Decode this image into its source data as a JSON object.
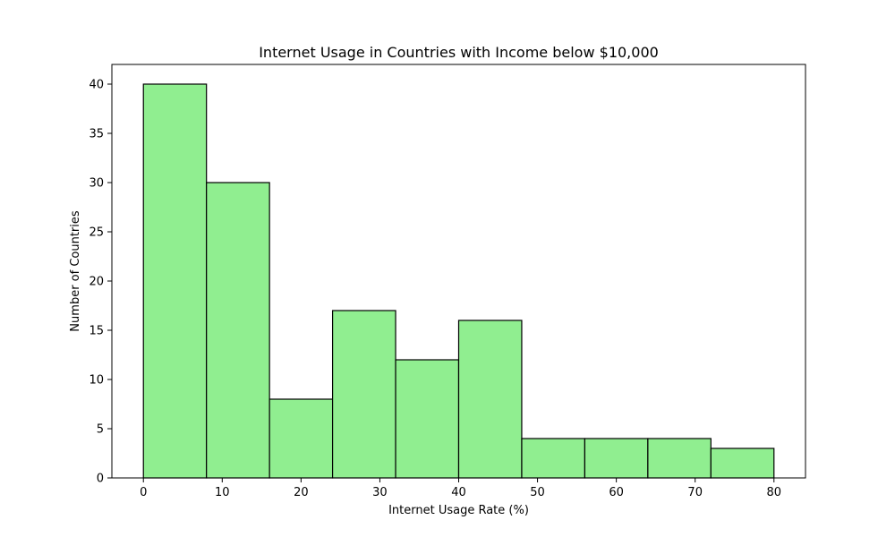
{
  "chart_data": {
    "type": "bar",
    "title": "Internet Usage in Countries with Income below $10,000",
    "xlabel": "Internet Usage Rate (%)",
    "ylabel": "Number of Countries",
    "bins": [
      {
        "start": 0,
        "end": 8,
        "count": 40
      },
      {
        "start": 8,
        "end": 16,
        "count": 30
      },
      {
        "start": 16,
        "end": 24,
        "count": 8
      },
      {
        "start": 24,
        "end": 32,
        "count": 17
      },
      {
        "start": 32,
        "end": 40,
        "count": 12
      },
      {
        "start": 40,
        "end": 48,
        "count": 16
      },
      {
        "start": 48,
        "end": 56,
        "count": 4
      },
      {
        "start": 56,
        "end": 64,
        "count": 4
      },
      {
        "start": 64,
        "end": 72,
        "count": 4
      },
      {
        "start": 72,
        "end": 80,
        "count": 3
      }
    ],
    "xlim": [
      -4,
      84
    ],
    "ylim": [
      0,
      42
    ],
    "xticks": [
      "0",
      "10",
      "20",
      "30",
      "40",
      "50",
      "60",
      "70",
      "80"
    ],
    "yticks": [
      "0",
      "5",
      "10",
      "15",
      "20",
      "25",
      "30",
      "35",
      "40"
    ],
    "grid": false,
    "colors": {
      "bar_fill": "#90ee90",
      "bar_edge": "#000000"
    }
  }
}
